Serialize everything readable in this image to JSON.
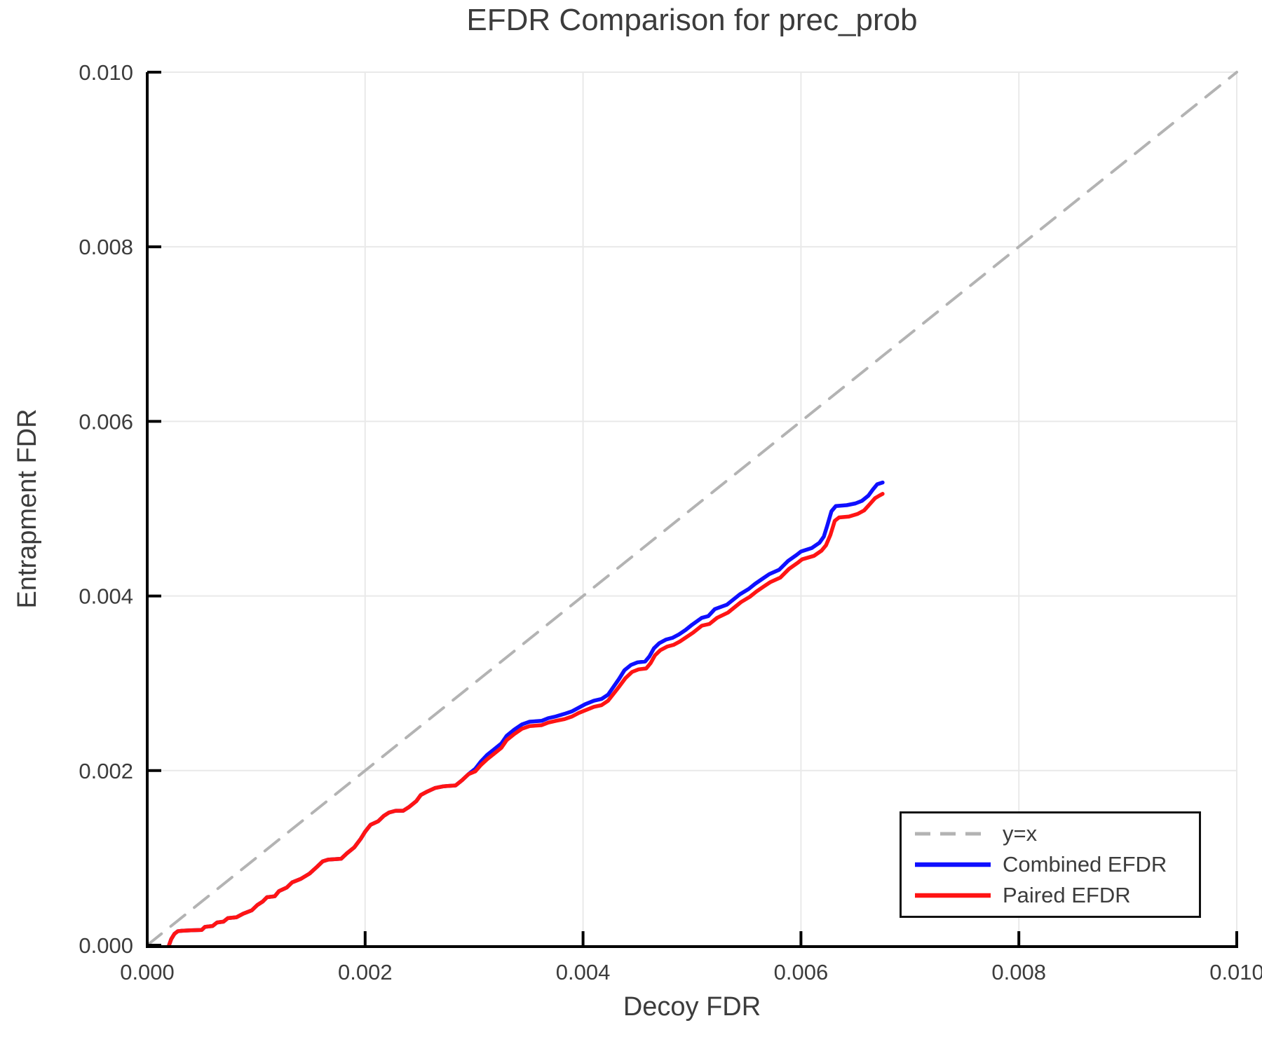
{
  "chart_data": {
    "type": "line",
    "title": "EFDR Comparison for prec_prob",
    "xlabel": "Decoy FDR",
    "ylabel": "Entrapment FDR",
    "xlim": [
      0.0,
      0.01
    ],
    "ylim": [
      0.0,
      0.01
    ],
    "xticks": [
      0.0,
      0.002,
      0.004,
      0.006,
      0.008,
      0.01
    ],
    "xtick_labels": [
      "0.000",
      "0.002",
      "0.004",
      "0.006",
      "0.008",
      "0.010"
    ],
    "yticks": [
      0.0,
      0.002,
      0.004,
      0.006,
      0.008,
      0.01
    ],
    "ytick_labels": [
      "0.000",
      "0.002",
      "0.004",
      "0.006",
      "0.008",
      "0.010"
    ],
    "grid": true,
    "grid_color": "#e9e9e9",
    "axis_color": "#000000",
    "text_color": "#3c3c3c",
    "legend_position": "lower right",
    "series": [
      {
        "name": "y=x",
        "color": "#b3b3b3",
        "style": "dashed",
        "width": 4,
        "points": [
          [
            0.0,
            0.0
          ],
          [
            0.01,
            0.01
          ]
        ]
      },
      {
        "name": "Combined EFDR",
        "color": "#0f0fff",
        "style": "solid",
        "width": 5.5,
        "points": [
          [
            0.0002,
            0.0
          ],
          [
            0.00022,
            7e-05
          ],
          [
            0.00025,
            0.00013
          ],
          [
            0.00028,
            0.00016
          ],
          [
            0.00032,
            0.000165
          ],
          [
            0.0004,
            0.00017
          ],
          [
            0.0005,
            0.000175
          ],
          [
            0.00053,
            0.00021
          ],
          [
            0.0006,
            0.00022
          ],
          [
            0.00064,
            0.00026
          ],
          [
            0.0007,
            0.00027
          ],
          [
            0.00074,
            0.00031
          ],
          [
            0.00082,
            0.00032
          ],
          [
            0.00088,
            0.00036
          ],
          [
            0.00096,
            0.0004
          ],
          [
            0.00101,
            0.00046
          ],
          [
            0.00106,
            0.0005
          ],
          [
            0.0011,
            0.00055
          ],
          [
            0.00117,
            0.00056
          ],
          [
            0.00121,
            0.00062
          ],
          [
            0.00128,
            0.00066
          ],
          [
            0.00133,
            0.00072
          ],
          [
            0.00141,
            0.00076
          ],
          [
            0.00149,
            0.00082
          ],
          [
            0.00156,
            0.0009
          ],
          [
            0.00161,
            0.00096
          ],
          [
            0.00166,
            0.00098
          ],
          [
            0.00178,
            0.00099
          ],
          [
            0.00183,
            0.00105
          ],
          [
            0.0019,
            0.00112
          ],
          [
            0.00196,
            0.00122
          ],
          [
            0.002,
            0.0013
          ],
          [
            0.00205,
            0.00138
          ],
          [
            0.00212,
            0.00142
          ],
          [
            0.00217,
            0.00148
          ],
          [
            0.00222,
            0.00152
          ],
          [
            0.00228,
            0.00154
          ],
          [
            0.00235,
            0.00154
          ],
          [
            0.0024,
            0.00158
          ],
          [
            0.00247,
            0.00165
          ],
          [
            0.00251,
            0.00172
          ],
          [
            0.00257,
            0.00176
          ],
          [
            0.00264,
            0.0018
          ],
          [
            0.00272,
            0.00182
          ],
          [
            0.00283,
            0.00183
          ],
          [
            0.00289,
            0.00189
          ],
          [
            0.00295,
            0.00196
          ],
          [
            0.00301,
            0.00202
          ],
          [
            0.00306,
            0.0021
          ],
          [
            0.00312,
            0.00218
          ],
          [
            0.00318,
            0.00224
          ],
          [
            0.00325,
            0.00231
          ],
          [
            0.0033,
            0.0024
          ],
          [
            0.00337,
            0.00247
          ],
          [
            0.00344,
            0.00253
          ],
          [
            0.00351,
            0.00256
          ],
          [
            0.00362,
            0.00257
          ],
          [
            0.00368,
            0.0026
          ],
          [
            0.00375,
            0.00262
          ],
          [
            0.00383,
            0.00265
          ],
          [
            0.0039,
            0.00268
          ],
          [
            0.00396,
            0.00272
          ],
          [
            0.00402,
            0.00276
          ],
          [
            0.0041,
            0.0028
          ],
          [
            0.00417,
            0.00282
          ],
          [
            0.00423,
            0.00287
          ],
          [
            0.00428,
            0.00296
          ],
          [
            0.00433,
            0.00305
          ],
          [
            0.00438,
            0.00315
          ],
          [
            0.00444,
            0.00321
          ],
          [
            0.0045,
            0.00324
          ],
          [
            0.00457,
            0.00325
          ],
          [
            0.00461,
            0.00331
          ],
          [
            0.00465,
            0.0034
          ],
          [
            0.0047,
            0.00346
          ],
          [
            0.00476,
            0.0035
          ],
          [
            0.00482,
            0.00352
          ],
          [
            0.00488,
            0.00356
          ],
          [
            0.00494,
            0.00361
          ],
          [
            0.005,
            0.00367
          ],
          [
            0.00509,
            0.00375
          ],
          [
            0.00515,
            0.00377
          ],
          [
            0.00521,
            0.00385
          ],
          [
            0.00532,
            0.0039
          ],
          [
            0.00544,
            0.00402
          ],
          [
            0.00552,
            0.00408
          ],
          [
            0.00558,
            0.00414
          ],
          [
            0.00565,
            0.0042
          ],
          [
            0.00571,
            0.00425
          ],
          [
            0.0058,
            0.0043
          ],
          [
            0.00588,
            0.0044
          ],
          [
            0.00596,
            0.00447
          ],
          [
            0.006,
            0.00451
          ],
          [
            0.0061,
            0.00455
          ],
          [
            0.00617,
            0.00461
          ],
          [
            0.00621,
            0.00468
          ],
          [
            0.00624,
            0.0048
          ],
          [
            0.00628,
            0.00497
          ],
          [
            0.00632,
            0.00503
          ],
          [
            0.00642,
            0.00504
          ],
          [
            0.0065,
            0.00506
          ],
          [
            0.00656,
            0.00509
          ],
          [
            0.00662,
            0.00515
          ],
          [
            0.00666,
            0.00522
          ],
          [
            0.0067,
            0.00528
          ],
          [
            0.00675,
            0.0053
          ]
        ]
      },
      {
        "name": "Paired EFDR",
        "color": "#ff1414",
        "style": "solid",
        "width": 5.5,
        "points": [
          [
            0.0002,
            0.0
          ],
          [
            0.00022,
            7e-05
          ],
          [
            0.00025,
            0.00013
          ],
          [
            0.00028,
            0.00016
          ],
          [
            0.00032,
            0.000165
          ],
          [
            0.0004,
            0.00017
          ],
          [
            0.0005,
            0.000175
          ],
          [
            0.00053,
            0.00021
          ],
          [
            0.0006,
            0.00022
          ],
          [
            0.00064,
            0.00026
          ],
          [
            0.0007,
            0.00027
          ],
          [
            0.00074,
            0.00031
          ],
          [
            0.00082,
            0.00032
          ],
          [
            0.00088,
            0.00036
          ],
          [
            0.00096,
            0.0004
          ],
          [
            0.00101,
            0.00046
          ],
          [
            0.00106,
            0.0005
          ],
          [
            0.0011,
            0.00055
          ],
          [
            0.00117,
            0.00056
          ],
          [
            0.00121,
            0.00062
          ],
          [
            0.00128,
            0.00066
          ],
          [
            0.00133,
            0.00072
          ],
          [
            0.00141,
            0.00076
          ],
          [
            0.00149,
            0.00082
          ],
          [
            0.00156,
            0.0009
          ],
          [
            0.00161,
            0.00096
          ],
          [
            0.00166,
            0.00098
          ],
          [
            0.00178,
            0.00099
          ],
          [
            0.00183,
            0.00105
          ],
          [
            0.0019,
            0.00112
          ],
          [
            0.00196,
            0.00122
          ],
          [
            0.002,
            0.0013
          ],
          [
            0.00205,
            0.00138
          ],
          [
            0.00212,
            0.00142
          ],
          [
            0.00217,
            0.00148
          ],
          [
            0.00222,
            0.00152
          ],
          [
            0.00228,
            0.00154
          ],
          [
            0.00235,
            0.00154
          ],
          [
            0.0024,
            0.00158
          ],
          [
            0.00247,
            0.00165
          ],
          [
            0.00251,
            0.00172
          ],
          [
            0.00257,
            0.00176
          ],
          [
            0.00264,
            0.0018
          ],
          [
            0.00272,
            0.00182
          ],
          [
            0.00283,
            0.00183
          ],
          [
            0.00289,
            0.00189
          ],
          [
            0.00295,
            0.00196
          ],
          [
            0.00301,
            0.00199
          ],
          [
            0.00306,
            0.00206
          ],
          [
            0.00312,
            0.00213
          ],
          [
            0.00318,
            0.00219
          ],
          [
            0.00325,
            0.00226
          ],
          [
            0.0033,
            0.00235
          ],
          [
            0.00337,
            0.00242
          ],
          [
            0.00344,
            0.00248
          ],
          [
            0.00351,
            0.00251
          ],
          [
            0.00362,
            0.00252
          ],
          [
            0.00368,
            0.00255
          ],
          [
            0.00375,
            0.00257
          ],
          [
            0.00383,
            0.00259
          ],
          [
            0.0039,
            0.00262
          ],
          [
            0.00396,
            0.00266
          ],
          [
            0.00402,
            0.00269
          ],
          [
            0.0041,
            0.00273
          ],
          [
            0.00417,
            0.00275
          ],
          [
            0.00423,
            0.0028
          ],
          [
            0.00428,
            0.00288
          ],
          [
            0.00433,
            0.00296
          ],
          [
            0.00439,
            0.00306
          ],
          [
            0.00445,
            0.00313
          ],
          [
            0.00451,
            0.00316
          ],
          [
            0.00458,
            0.00317
          ],
          [
            0.00462,
            0.00323
          ],
          [
            0.00466,
            0.00332
          ],
          [
            0.00471,
            0.00338
          ],
          [
            0.00477,
            0.00342
          ],
          [
            0.00483,
            0.00344
          ],
          [
            0.00489,
            0.00348
          ],
          [
            0.00495,
            0.00353
          ],
          [
            0.00501,
            0.00358
          ],
          [
            0.00509,
            0.00366
          ],
          [
            0.00516,
            0.00368
          ],
          [
            0.00523,
            0.00375
          ],
          [
            0.00533,
            0.00381
          ],
          [
            0.00545,
            0.00393
          ],
          [
            0.00553,
            0.00399
          ],
          [
            0.00559,
            0.00405
          ],
          [
            0.00566,
            0.00411
          ],
          [
            0.00572,
            0.00416
          ],
          [
            0.00581,
            0.00421
          ],
          [
            0.00589,
            0.00431
          ],
          [
            0.00597,
            0.00438
          ],
          [
            0.00601,
            0.00442
          ],
          [
            0.00612,
            0.00446
          ],
          [
            0.00619,
            0.00452
          ],
          [
            0.00623,
            0.00458
          ],
          [
            0.00627,
            0.0047
          ],
          [
            0.00631,
            0.00486
          ],
          [
            0.00635,
            0.0049
          ],
          [
            0.00644,
            0.00491
          ],
          [
            0.00652,
            0.00494
          ],
          [
            0.00658,
            0.00498
          ],
          [
            0.00663,
            0.00505
          ],
          [
            0.00668,
            0.00512
          ],
          [
            0.00672,
            0.00515
          ],
          [
            0.00675,
            0.00517
          ]
        ]
      }
    ]
  }
}
